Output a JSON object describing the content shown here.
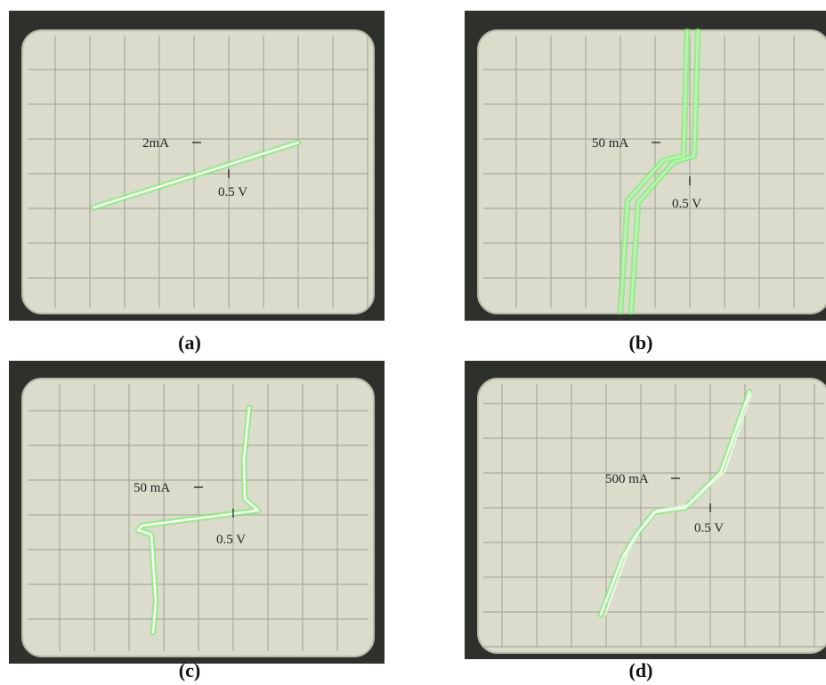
{
  "panels": [
    {
      "label": "(a)",
      "current_scale": "2mA",
      "voltage_scale": "0.5 V"
    },
    {
      "label": "(b)",
      "current_scale": "50 mA",
      "voltage_scale": "0.5 V"
    },
    {
      "label": "(c)",
      "current_scale": "50 mA",
      "voltage_scale": "0.5 V"
    },
    {
      "label": "(d)",
      "current_scale": "500 mA",
      "voltage_scale": "0.5 V"
    }
  ]
}
